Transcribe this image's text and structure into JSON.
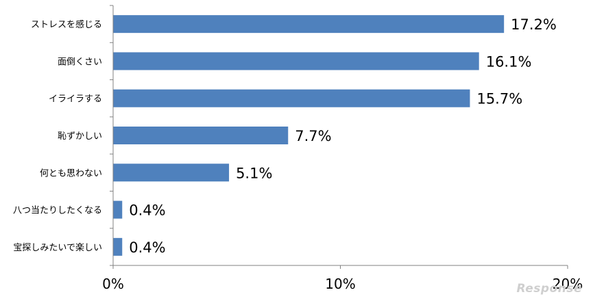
{
  "chart_data": {
    "type": "bar",
    "orientation": "horizontal",
    "categories": [
      "ストレスを感じる",
      "面倒くさい",
      "イライラする",
      "恥ずかしい",
      "何とも思わない",
      "八つ当たりしたくなる",
      "宝探しみたいで楽しい"
    ],
    "values": [
      17.2,
      16.1,
      15.7,
      7.7,
      5.1,
      0.4,
      0.4
    ],
    "data_labels": [
      "17.2%",
      "16.1%",
      "15.7%",
      "7.7%",
      "5.1%",
      "0.4%",
      "0.4%"
    ],
    "xlim": [
      0,
      20
    ],
    "ticks": [
      0,
      10,
      20
    ],
    "tick_labels": [
      "0%",
      "10%",
      "20%"
    ],
    "title": "",
    "xlabel": "",
    "ylabel": "",
    "grid": false,
    "bar_color": "#4f81bd"
  },
  "watermark": "Response"
}
